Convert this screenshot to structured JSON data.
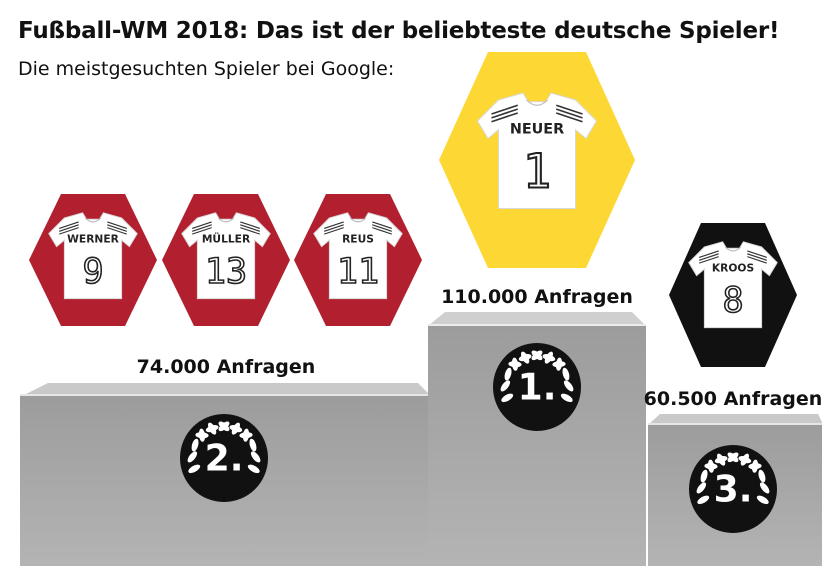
{
  "header": {
    "title": "Fußball-WM 2018: Das ist der beliebteste deutsche Spieler!",
    "subtitle": "Die meistgesuchten Spieler bei Google:"
  },
  "podium": {
    "first": {
      "rank": "1.",
      "count": "110.000 Anfragen",
      "players": [
        {
          "name": "NEUER",
          "number": "1"
        }
      ],
      "color": "#fdd835"
    },
    "second": {
      "rank": "2.",
      "count": "74.000 Anfragen",
      "players": [
        {
          "name": "WERNER",
          "number": "9"
        },
        {
          "name": "MÜLLER",
          "number": "13"
        },
        {
          "name": "REUS",
          "number": "11"
        }
      ],
      "color": "#b21f2e"
    },
    "third": {
      "rank": "3.",
      "count": "60.500 Anfragen",
      "players": [
        {
          "name": "KROOS",
          "number": "8"
        }
      ],
      "color": "#111111"
    }
  },
  "chart_data": {
    "type": "bar",
    "categories": [
      "NEUER",
      "WERNER",
      "MÜLLER",
      "REUS",
      "KROOS"
    ],
    "values": [
      110000,
      74000,
      74000,
      74000,
      60500
    ]
  },
  "icons": {
    "jersey": "jersey-icon",
    "laurel": "laurel-wreath-icon"
  }
}
